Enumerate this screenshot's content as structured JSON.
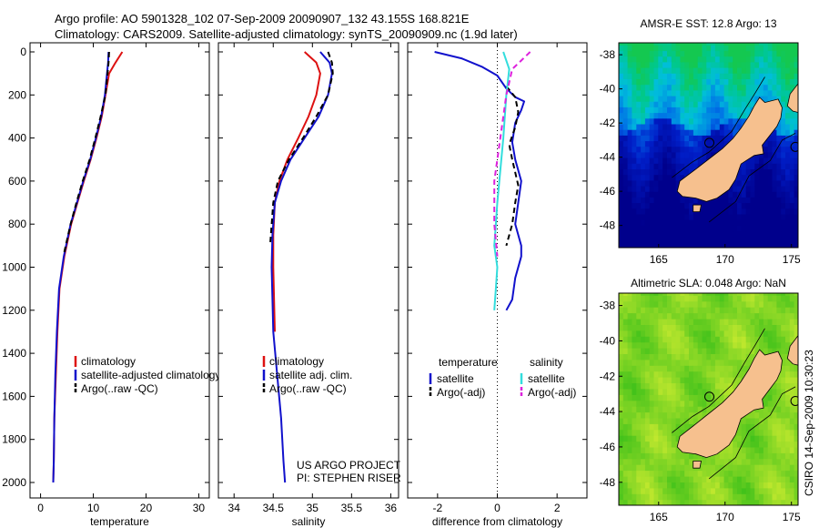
{
  "header": {
    "line1": "Argo profile: AO 5901328_102 07-Sep-2009 20090907_132 43.155S 168.821E",
    "line2": "Climatology: CARS2009. Satellite-adjusted climatology: synTS_20090909.nc (1.9d later)"
  },
  "colors": {
    "climatology": "#dd1111",
    "satellite": "#1111cc",
    "argo": "#000000",
    "sat_salinity": "#33dddd",
    "argo_salinity": "#dd22dd"
  },
  "chart_data": [
    {
      "type": "line",
      "xlabel": "temperature",
      "xlim": [
        -2,
        32
      ],
      "ylim": [
        2050,
        0
      ],
      "xticks": [
        0,
        10,
        20,
        30
      ],
      "yticks": [
        0,
        200,
        400,
        600,
        800,
        1000,
        1200,
        1400,
        1600,
        1800,
        2000
      ],
      "series": [
        {
          "name": "climatology",
          "color": "#dd1111",
          "x": [
            15.5,
            14.2,
            13.0,
            12.3,
            11.6,
            10.6,
            9.5,
            8.2,
            7.0,
            5.8,
            4.5,
            3.6,
            3.2,
            2.9,
            2.6,
            2.5,
            2.4
          ],
          "y": [
            0,
            50,
            100,
            200,
            300,
            400,
            500,
            600,
            700,
            800,
            950,
            1100,
            1300,
            1500,
            1700,
            1900,
            2000
          ]
        },
        {
          "name": "satellite-adjusted climatology",
          "color": "#1111cc",
          "x": [
            12.9,
            12.8,
            12.6,
            12.2,
            11.5,
            10.5,
            9.4,
            8.1,
            6.9,
            5.7,
            4.4,
            3.5,
            3.1,
            2.8,
            2.6,
            2.5,
            2.4
          ],
          "y": [
            0,
            50,
            100,
            200,
            300,
            400,
            500,
            600,
            700,
            800,
            950,
            1100,
            1300,
            1500,
            1700,
            1900,
            2000
          ]
        },
        {
          "name": "Argo(..raw -QC)",
          "color": "#000000",
          "dash": true,
          "x": [
            13.0,
            12.9,
            12.7,
            12.3,
            11.4,
            10.4,
            9.3,
            8.0,
            6.8,
            5.7,
            4.4
          ],
          "y": [
            0,
            50,
            100,
            200,
            300,
            400,
            500,
            600,
            700,
            800,
            940
          ]
        }
      ],
      "legend": [
        {
          "label": "climatology",
          "color": "#dd1111",
          "dash": false
        },
        {
          "label": "satellite-adjusted climatology",
          "color": "#1111cc",
          "dash": false
        },
        {
          "label": "Argo(..raw -QC)",
          "color": "#000000",
          "dash": true
        }
      ],
      "annotations": []
    },
    {
      "type": "line",
      "xlabel": "salinity",
      "xlim": [
        33.8,
        36.1
      ],
      "ylim": [
        2050,
        0
      ],
      "xticks": [
        34,
        34.5,
        35,
        35.5,
        36
      ],
      "yticks": [],
      "series": [
        {
          "name": "climatology",
          "color": "#dd1111",
          "x": [
            34.9,
            35.05,
            35.1,
            35.05,
            34.95,
            34.82,
            34.68,
            34.58,
            34.52,
            34.5,
            34.5,
            34.52
          ],
          "y": [
            0,
            50,
            100,
            200,
            300,
            400,
            500,
            600,
            700,
            850,
            1000,
            1300
          ]
        },
        {
          "name": "satellite adj. clim.",
          "color": "#1111cc",
          "x": [
            35.1,
            35.22,
            35.25,
            35.2,
            35.08,
            34.9,
            34.72,
            34.6,
            34.52,
            34.49,
            34.48,
            34.5,
            34.55,
            34.6,
            34.63,
            34.65
          ],
          "y": [
            0,
            50,
            100,
            200,
            300,
            400,
            500,
            600,
            700,
            850,
            1000,
            1300,
            1500,
            1700,
            1900,
            2000
          ]
        },
        {
          "name": "Argo(..raw -QC)",
          "color": "#000000",
          "dash": true,
          "x": [
            35.2,
            35.25,
            35.26,
            35.2,
            35.05,
            34.88,
            34.7,
            34.56,
            34.5,
            34.46
          ],
          "y": [
            0,
            50,
            100,
            200,
            300,
            400,
            500,
            600,
            700,
            900
          ]
        }
      ],
      "legend": [
        {
          "label": "climatology",
          "color": "#dd1111",
          "dash": false
        },
        {
          "label": "satellite adj. clim.",
          "color": "#1111cc",
          "dash": false
        },
        {
          "label": "Argo(..raw -QC)",
          "color": "#000000",
          "dash": true
        }
      ],
      "annotations": [
        "US ARGO PROJECT",
        "PI: STEPHEN RISER"
      ]
    },
    {
      "type": "line",
      "xlabel": "difference from climatology",
      "xlim": [
        -3,
        3
      ],
      "ylim": [
        2050,
        0
      ],
      "xticks": [
        -2,
        0,
        2
      ],
      "yticks": [],
      "zero_line": 0,
      "series": [
        {
          "name": "temperature satellite",
          "color": "#1111cc",
          "x": [
            -2.1,
            -1.2,
            -0.5,
            0.0,
            0.3,
            0.6,
            0.9,
            0.8,
            0.6,
            0.5,
            0.6,
            0.8,
            0.7,
            0.6,
            0.8,
            0.8,
            0.6,
            0.5,
            0.3
          ],
          "y": [
            0,
            30,
            70,
            110,
            170,
            210,
            230,
            270,
            330,
            420,
            500,
            600,
            700,
            800,
            900,
            950,
            1050,
            1150,
            1200
          ]
        },
        {
          "name": "temperature Argo(-adj)",
          "color": "#000000",
          "dash": true,
          "x": [
            0.3,
            0.6,
            0.7,
            0.6,
            0.4,
            0.5,
            0.7,
            0.6,
            0.5,
            0.3
          ],
          "y": [
            160,
            210,
            280,
            350,
            430,
            500,
            620,
            700,
            800,
            900
          ]
        },
        {
          "name": "salinity satellite",
          "color": "#33dddd",
          "x": [
            0.2,
            0.4,
            0.3,
            0.2,
            0.1,
            0.0,
            -0.05,
            -0.1,
            0.0,
            -0.05,
            -0.1
          ],
          "y": [
            0,
            80,
            200,
            400,
            550,
            700,
            800,
            900,
            1000,
            1100,
            1200
          ]
        },
        {
          "name": "salinity Argo(-adj)",
          "color": "#dd22dd",
          "dash": true,
          "x": [
            1.1,
            0.8,
            0.5,
            0.3,
            0.1,
            -0.1,
            -0.1,
            0.0
          ],
          "y": [
            0,
            40,
            80,
            200,
            400,
            600,
            800,
            950
          ]
        }
      ],
      "legend_headers": [
        "temperature",
        "salinity"
      ],
      "legend": [
        {
          "label": "satellite",
          "color": "#1111cc",
          "dash": false,
          "col": 0
        },
        {
          "label": "Argo(-adj)",
          "color": "#000000",
          "dash": true,
          "col": 0
        },
        {
          "label": "satellite",
          "color": "#33dddd",
          "dash": false,
          "col": 1
        },
        {
          "label": "Argo(-adj)",
          "color": "#dd22dd",
          "dash": true,
          "col": 1
        }
      ],
      "annotations": []
    },
    {
      "type": "heatmap",
      "title": "AMSR-E SST: 12.8 Argo: 13",
      "xlim": [
        162,
        175.5
      ],
      "ylim": [
        -49.3,
        -37.3
      ],
      "xticks": [
        165,
        170,
        175
      ],
      "yticks": [
        -38,
        -40,
        -42,
        -44,
        -46,
        -48
      ],
      "marker": {
        "lon": 168.82,
        "lat": -43.16
      },
      "palette": "sst"
    },
    {
      "type": "heatmap",
      "title": "Altimetric SLA: 0.048 Argo: NaN",
      "xlim": [
        162,
        175.5
      ],
      "ylim": [
        -49.3,
        -37.3
      ],
      "xticks": [
        165,
        170,
        175
      ],
      "yticks": [
        -38,
        -40,
        -42,
        -44,
        -46,
        -48
      ],
      "marker": {
        "lon": 168.82,
        "lat": -43.16
      },
      "palette": "sla"
    }
  ],
  "footer": {
    "stamp": "CSIRO 14-Sep-2009 10:30:23"
  }
}
